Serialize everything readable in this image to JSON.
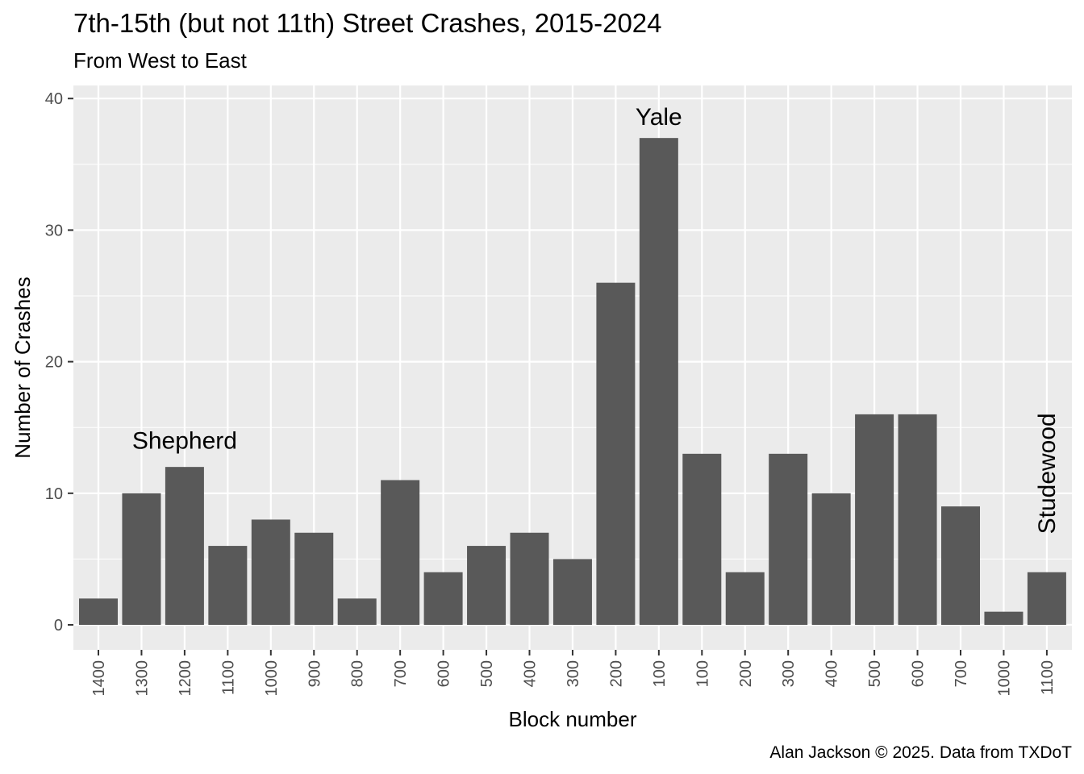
{
  "chart_data": {
    "type": "bar",
    "title": "7th-15th (but not 11th) Street Crashes, 2015-2024",
    "subtitle": "From West to East",
    "xlabel": "Block number",
    "ylabel": "Number of Crashes",
    "caption": "Alan Jackson © 2025. Data from TXDoT",
    "categories": [
      "1400",
      "1300",
      "1200",
      "1100",
      "1000",
      "900",
      "800",
      "700",
      "600",
      "500",
      "400",
      "300",
      "200",
      "100",
      "100",
      "200",
      "300",
      "400",
      "500",
      "600",
      "700",
      "1000",
      "1100"
    ],
    "values": [
      2,
      10,
      12,
      6,
      8,
      7,
      2,
      11,
      4,
      6,
      7,
      5,
      26,
      37,
      13,
      4,
      13,
      10,
      16,
      16,
      9,
      1,
      4
    ],
    "ylim": [
      0,
      40
    ],
    "yticks": [
      0,
      10,
      20,
      30,
      40
    ],
    "grid": true,
    "bar_color": "#595959",
    "panel_color": "#ebebeb",
    "annotations": [
      {
        "text": "Shepherd",
        "category_index": 2,
        "y": 13.4,
        "rotate": false
      },
      {
        "text": "Yale",
        "category_index": 13,
        "y": 38,
        "rotate": false
      },
      {
        "text": "Studewood",
        "category_index": 22,
        "y": 6.9,
        "rotate": true
      }
    ]
  }
}
